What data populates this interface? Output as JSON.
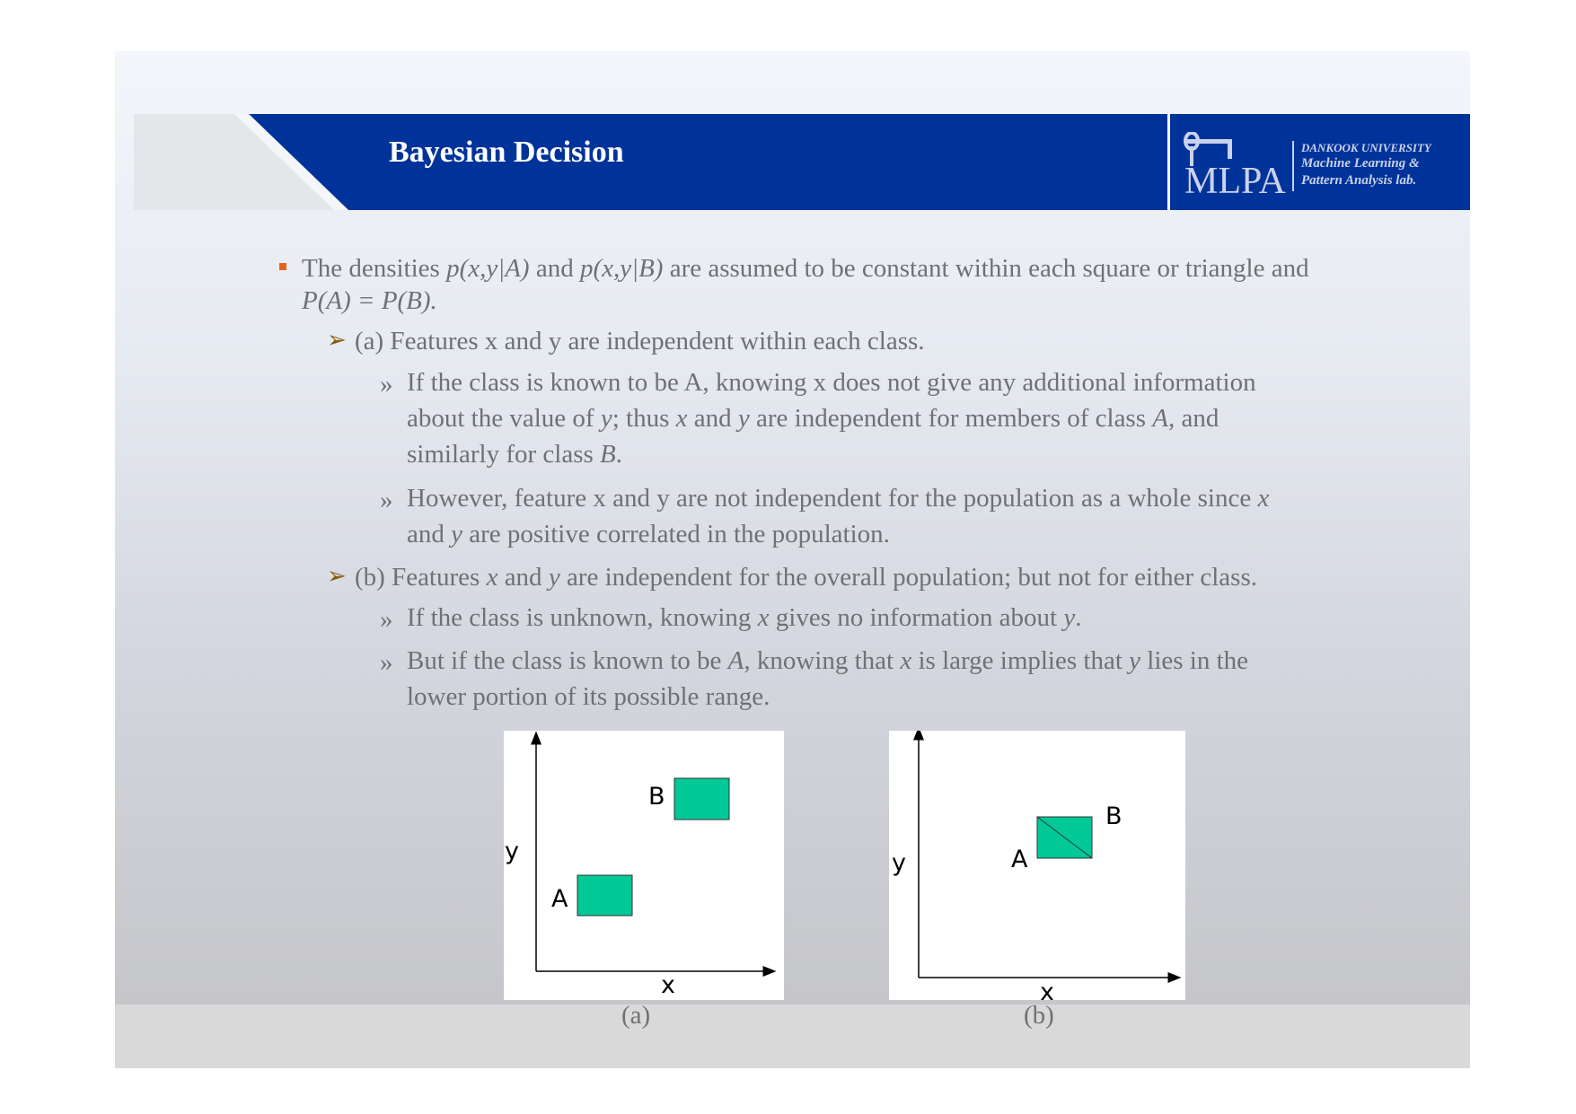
{
  "slide": {
    "title": "Bayesian Decision",
    "logo": {
      "mark_text": "MLPA",
      "university": "DANKOOK UNIVERSITY",
      "lab_line1": "Machine Learning &",
      "lab_line2": "Pattern Analysis lab."
    }
  },
  "body": {
    "l1a": "The densities ",
    "l1b": "p(x,y|A)",
    "l1c": " and ",
    "l1d": "p(x,y|B)",
    "l1e": " are assumed to be constant within each square or triangle and",
    "l2": "P(A) = P(B).",
    "l3": "(a) Features x and y are independent within each class.",
    "l4": "If the class is known to be A, knowing x does not give any additional information",
    "l5a": "about the value of ",
    "l5b": "y",
    "l5c": "; thus ",
    "l5d": "x",
    "l5e": " and ",
    "l5f": "y",
    "l5g": " are independent for members of class ",
    "l5h": "A",
    "l5i": ", and",
    "l6a": "similarly for class ",
    "l6b": "B",
    "l6c": ".",
    "l7a": "However, feature x and y are not independent for the population as a whole since ",
    "l7b": "x",
    "l8a": "and ",
    "l8b": "y",
    "l8c": " are positive correlated in the population.",
    "l9a": "(b) Features ",
    "l9b": "x",
    "l9c": " and ",
    "l9d": "y",
    "l9e": " are independent for the overall population; but not for either class.",
    "l10a": "If the class is unknown, knowing ",
    "l10b": "x",
    "l10c": " gives no information about ",
    "l10d": "y",
    "l10e": ".",
    "l11a": "But if the class is known to be ",
    "l11b": "A",
    "l11c": ", knowing that ",
    "l11d": "x",
    "l11e": " is large implies that ",
    "l11f": "y",
    "l11g": " lies in the",
    "l12": "lower portion of its possible range.",
    "sub_marker": "»"
  },
  "figures": {
    "a": {
      "x_label": "x",
      "y_label": "y",
      "label_a": "A",
      "label_b": "B",
      "caption": "(a)"
    },
    "b": {
      "x_label": "x",
      "y_label": "y",
      "label_a": "A",
      "label_b": "B",
      "caption": "(b)"
    },
    "fill_color": "#00c896"
  },
  "colors": {
    "header_blue": "#00339a",
    "bullet_orange": "#e8621a",
    "arrow_brown": "#8a5a0a",
    "text_gray": "#6f7172"
  }
}
